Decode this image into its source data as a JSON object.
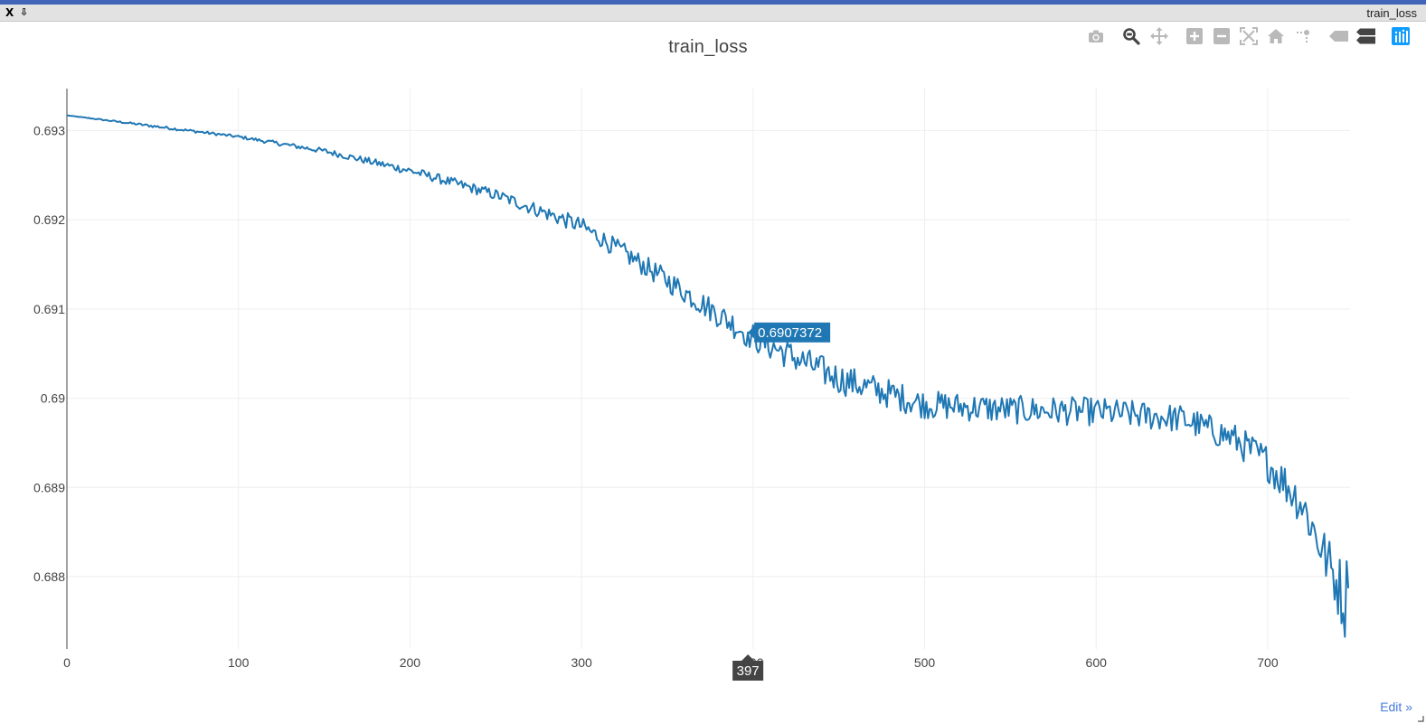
{
  "window": {
    "title": "train_loss",
    "close_label": "X",
    "pin_label": "⇩"
  },
  "modebar": {
    "buttons": [
      {
        "name": "download-plot-button",
        "icon": "camera-icon"
      },
      {
        "name": "zoom-button",
        "icon": "zoom-icon",
        "active": true
      },
      {
        "name": "pan-button",
        "icon": "pan-icon"
      },
      {
        "name": "zoom-in-button",
        "icon": "zoom-in-icon"
      },
      {
        "name": "zoom-out-button",
        "icon": "zoom-out-icon"
      },
      {
        "name": "autoscale-button",
        "icon": "autoscale-icon"
      },
      {
        "name": "reset-axes-button",
        "icon": "home-icon"
      },
      {
        "name": "toggle-spike-lines-button",
        "icon": "spikelines-icon"
      },
      {
        "name": "show-closest-button",
        "icon": "hover-closest-icon"
      },
      {
        "name": "compare-data-button",
        "icon": "hover-compare-icon"
      },
      {
        "name": "plotly-logo-button",
        "icon": "plotly-logo-icon"
      }
    ],
    "accent": "#119dff"
  },
  "edit_link": "Edit »",
  "chart_data": {
    "type": "line",
    "title": "train_loss",
    "xlabel": "",
    "ylabel": "",
    "xlim": [
      0,
      748
    ],
    "ylim": [
      0.68719,
      0.69347
    ],
    "xticks": [
      0,
      100,
      200,
      300,
      400,
      500,
      600,
      700
    ],
    "yticks": [
      0.688,
      0.689,
      0.69,
      0.691,
      0.692,
      0.693
    ],
    "xtick_labels": [
      "0",
      "100",
      "200",
      "300",
      "400",
      "500",
      "600",
      "700"
    ],
    "ytick_labels": [
      "0.688",
      "0.689",
      "0.69",
      "0.691",
      "0.692",
      "0.693"
    ],
    "grid": true,
    "color": "#1f77b4",
    "num_points": 748,
    "series": [
      {
        "name": "",
        "x": [
          0,
          50,
          100,
          150,
          200,
          250,
          300,
          350,
          400,
          450,
          500,
          550,
          600,
          650,
          680,
          700,
          720,
          740,
          745,
          748
        ],
        "y": [
          0.69317,
          0.69305,
          0.69293,
          0.69277,
          0.69255,
          0.69228,
          0.69193,
          0.69132,
          0.69068,
          0.69022,
          0.68993,
          0.68987,
          0.68985,
          0.68977,
          0.68955,
          0.68928,
          0.68882,
          0.68795,
          0.68775,
          0.68793
        ],
        "noise": [
          0,
          1e-05,
          1e-05,
          2e-05,
          3e-05,
          4e-05,
          6e-05,
          8e-05,
          0.0001,
          0.00011,
          0.0001,
          0.0001,
          0.0001,
          0.0001,
          0.00011,
          0.00013,
          0.00016,
          0.0002,
          0.0003,
          0.0003
        ]
      }
    ],
    "hover": {
      "x": 397,
      "y_label": "0.6907372",
      "x_label": "397",
      "y": 0.6907372
    }
  }
}
